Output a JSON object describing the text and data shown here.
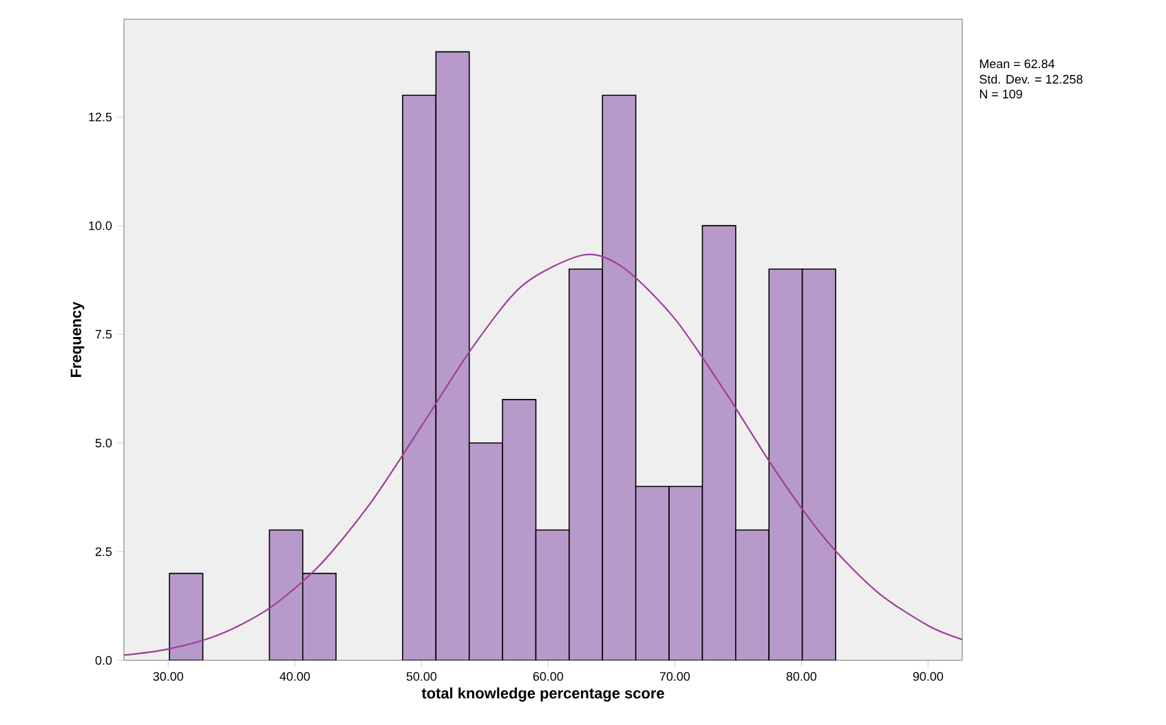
{
  "chart_data": {
    "type": "histogram",
    "xlabel": "total knowledge percentage score",
    "ylabel": "Frequency",
    "bins": [
      30.1,
      32.73,
      35.36,
      37.99,
      40.62,
      43.25,
      45.88,
      48.51,
      51.14,
      53.77,
      56.4,
      59.03,
      61.66,
      64.29,
      66.92,
      69.55,
      72.18,
      74.81,
      77.44,
      80.07,
      82.7
    ],
    "values": [
      2,
      0,
      0,
      3,
      2,
      0,
      0,
      13,
      14,
      5,
      6,
      3,
      9,
      13,
      4,
      4,
      10,
      3,
      9,
      9
    ],
    "color": "#b89aca",
    "series": [
      {
        "type": "line",
        "color": "#9b3f98",
        "x": [
          26.5,
          30,
          34,
          38,
          42,
          46,
          50,
          54,
          58,
          62.84,
          66,
          70,
          74,
          78,
          82,
          86,
          90,
          92.7
        ],
        "values": [
          0.12,
          0.26,
          0.59,
          1.2,
          2.2,
          3.63,
          5.39,
          7.19,
          8.63,
          9.33,
          9.02,
          7.86,
          6.17,
          4.34,
          2.75,
          1.57,
          0.8,
          0.48
        ]
      }
    ],
    "xlim": [
      26.5,
      92.7
    ],
    "ylim": [
      0,
      14.75
    ],
    "xticks": [
      {
        "value": 30,
        "label": "30.00"
      },
      {
        "value": 40,
        "label": "40.00"
      },
      {
        "value": 50,
        "label": "50.00"
      },
      {
        "value": 60,
        "label": "60.00"
      },
      {
        "value": 70,
        "label": "70.00"
      },
      {
        "value": 80,
        "label": "80.00"
      },
      {
        "value": 90,
        "label": "90.00"
      }
    ],
    "yticks": [
      {
        "value": 0,
        "label": "0.0"
      },
      {
        "value": 2.5,
        "label": "2.5"
      },
      {
        "value": 5,
        "label": "5.0"
      },
      {
        "value": 7.5,
        "label": "7.5"
      },
      {
        "value": 10,
        "label": "10.0"
      },
      {
        "value": 12.5,
        "label": "12.5"
      }
    ],
    "annotations": [
      "Mean = 62.84",
      "Std. Dev. = 12.258",
      "N = 109"
    ]
  }
}
